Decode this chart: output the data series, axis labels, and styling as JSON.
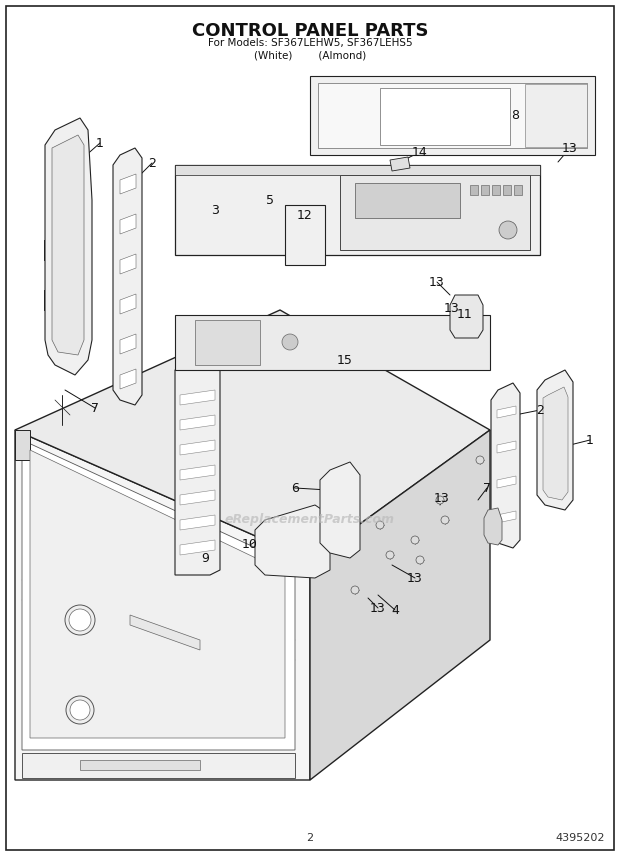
{
  "title_line1": "CONTROL PANEL PARTS",
  "title_line2": "For Models: SF367LEHW5, SF367LEHS5",
  "title_line3": "(White)        (Almond)",
  "page_number": "2",
  "part_number": "4395202",
  "background_color": "#ffffff",
  "watermark_text": "eReplacementParts.com",
  "lc": "#222222",
  "fc_light": "#f2f2f2",
  "fc_mid": "#e0e0e0",
  "fc_dark": "#c8c8c8"
}
